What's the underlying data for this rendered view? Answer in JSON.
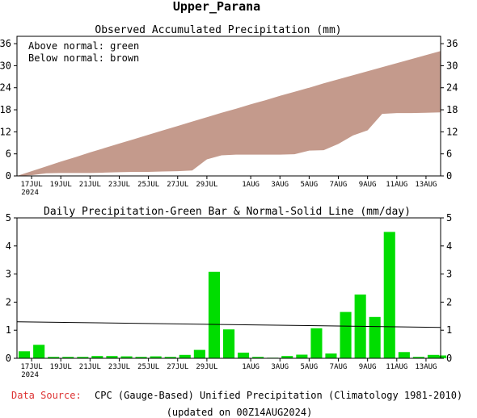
{
  "header": {
    "title": "Upper_Parana",
    "source_label": "Data Source:",
    "source_text": "CPC (Gauge-Based) Unified Precipitation (Climatology 1981-2010)",
    "updated": "(updated on 00Z14AUG2024)"
  },
  "colors": {
    "accumulated_fill": "#c49a8c",
    "daily_bars": "#00dd00",
    "normal_line": "#000000",
    "source_label": "#dd3333"
  },
  "chart_data": [
    {
      "type": "area",
      "title": "Observed Accumulated Precipitation (mm)",
      "legend_lines": [
        "Above normal: green",
        "Below normal: brown"
      ],
      "xlim": [
        "2024-07-16",
        "2024-08-14"
      ],
      "ylim": [
        0,
        38
      ],
      "yticks": [
        0,
        6,
        12,
        18,
        24,
        30,
        36
      ],
      "x_tick_labels": [
        {
          "date": "2024-07-17",
          "label": "17JUL",
          "sub": "2024"
        },
        {
          "date": "2024-07-19",
          "label": "19JUL"
        },
        {
          "date": "2024-07-21",
          "label": "21JUL"
        },
        {
          "date": "2024-07-23",
          "label": "23JUL"
        },
        {
          "date": "2024-07-25",
          "label": "25JUL"
        },
        {
          "date": "2024-07-27",
          "label": "27JUL"
        },
        {
          "date": "2024-07-29",
          "label": "29JUL"
        },
        {
          "date": "2024-08-01",
          "label": "1AUG"
        },
        {
          "date": "2024-08-03",
          "label": "3AUG"
        },
        {
          "date": "2024-08-05",
          "label": "5AUG"
        },
        {
          "date": "2024-08-07",
          "label": "7AUG"
        },
        {
          "date": "2024-08-09",
          "label": "9AUG"
        },
        {
          "date": "2024-08-11",
          "label": "11AUG"
        },
        {
          "date": "2024-08-13",
          "label": "13AUG"
        }
      ],
      "grid": false,
      "series": [
        {
          "name": "Normal",
          "x": [
            "2024-07-16",
            "2024-07-17",
            "2024-07-18",
            "2024-07-19",
            "2024-07-20",
            "2024-07-21",
            "2024-07-22",
            "2024-07-23",
            "2024-07-24",
            "2024-07-25",
            "2024-07-26",
            "2024-07-27",
            "2024-07-28",
            "2024-07-29",
            "2024-07-30",
            "2024-07-31",
            "2024-08-01",
            "2024-08-02",
            "2024-08-03",
            "2024-08-04",
            "2024-08-05",
            "2024-08-06",
            "2024-08-07",
            "2024-08-08",
            "2024-08-09",
            "2024-08-10",
            "2024-08-11",
            "2024-08-12",
            "2024-08-13",
            "2024-08-14"
          ],
          "values": [
            0.0,
            1.3,
            2.6,
            3.9,
            5.1,
            6.4,
            7.6,
            8.8,
            10.0,
            11.2,
            12.4,
            13.6,
            14.8,
            16.0,
            17.2,
            18.3,
            19.5,
            20.6,
            21.8,
            22.9,
            24.0,
            25.2,
            26.3,
            27.4,
            28.5,
            29.6,
            30.7,
            31.8,
            32.9,
            34.0
          ]
        },
        {
          "name": "Observed",
          "x": [
            "2024-07-16",
            "2024-07-17",
            "2024-07-18",
            "2024-07-19",
            "2024-07-20",
            "2024-07-21",
            "2024-07-22",
            "2024-07-23",
            "2024-07-24",
            "2024-07-25",
            "2024-07-26",
            "2024-07-27",
            "2024-07-28",
            "2024-07-29",
            "2024-07-30",
            "2024-07-31",
            "2024-08-01",
            "2024-08-02",
            "2024-08-03",
            "2024-08-04",
            "2024-08-05",
            "2024-08-06",
            "2024-08-07",
            "2024-08-08",
            "2024-08-09",
            "2024-08-10",
            "2024-08-11",
            "2024-08-12",
            "2024-08-13",
            "2024-08-14"
          ],
          "values": [
            0.0,
            0.2,
            0.7,
            0.8,
            0.8,
            0.8,
            0.9,
            1.0,
            1.1,
            1.1,
            1.2,
            1.3,
            1.5,
            4.5,
            5.6,
            5.8,
            5.8,
            5.8,
            5.8,
            5.9,
            6.9,
            7.0,
            8.7,
            11.0,
            12.4,
            16.9,
            17.1,
            17.1,
            17.2,
            17.3
          ]
        }
      ]
    },
    {
      "type": "bar",
      "title": "Daily Precipitation-Green Bar & Normal-Solid Line (mm/day)",
      "xlim": [
        "2024-07-16",
        "2024-08-14"
      ],
      "ylim": [
        0,
        5
      ],
      "yticks": [
        0,
        1,
        2,
        3,
        4,
        5
      ],
      "grid": false,
      "x": [
        "2024-07-16",
        "2024-07-17",
        "2024-07-18",
        "2024-07-19",
        "2024-07-20",
        "2024-07-21",
        "2024-07-22",
        "2024-07-23",
        "2024-07-24",
        "2024-07-25",
        "2024-07-26",
        "2024-07-27",
        "2024-07-28",
        "2024-07-29",
        "2024-07-30",
        "2024-07-31",
        "2024-08-01",
        "2024-08-02",
        "2024-08-03",
        "2024-08-04",
        "2024-08-05",
        "2024-08-06",
        "2024-08-07",
        "2024-08-08",
        "2024-08-09",
        "2024-08-10",
        "2024-08-11",
        "2024-08-12",
        "2024-08-13",
        "2024-08-14"
      ],
      "values": [
        0.25,
        0.48,
        0.05,
        0.05,
        0.05,
        0.08,
        0.08,
        0.07,
        0.05,
        0.07,
        0.05,
        0.12,
        0.3,
        3.08,
        1.03,
        0.2,
        0.05,
        0.02,
        0.08,
        0.13,
        1.07,
        0.17,
        1.65,
        2.27,
        1.47,
        4.5,
        0.22,
        0.05,
        0.12,
        0.1
      ],
      "normal": {
        "x": [
          "2024-07-16",
          "2024-08-14"
        ],
        "values": [
          1.3,
          1.1
        ]
      }
    }
  ]
}
